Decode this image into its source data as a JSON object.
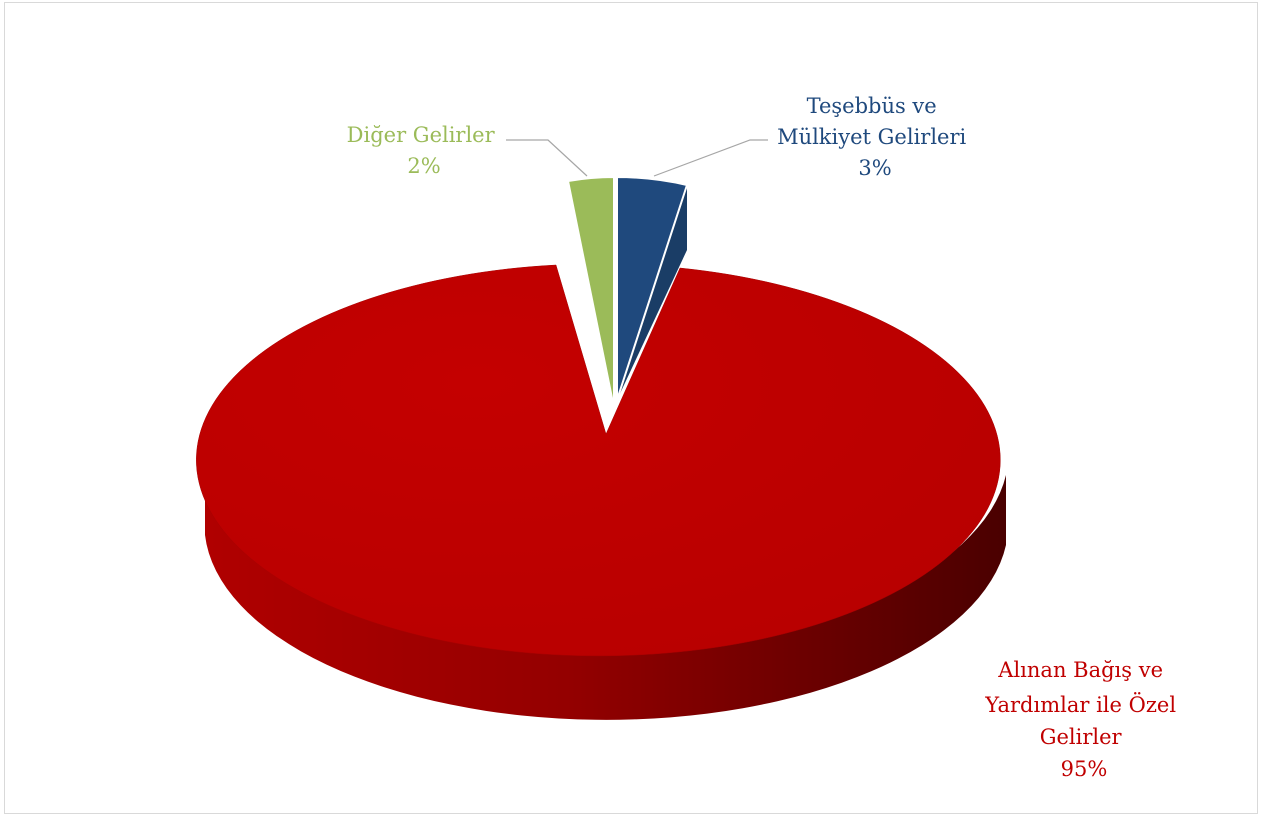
{
  "chart_data": {
    "type": "pie",
    "style": "3d-exploded",
    "slices": [
      {
        "label": "Alınan Bağış ve Yardımlar ile Özel Gelirler",
        "label_lines": [
          "Alınan Bağış ve",
          "Yardımlar ile Özel",
          "Gelirler",
          "95%"
        ],
        "value": 95,
        "color": "#c00000"
      },
      {
        "label": "Diğer Gelirler",
        "label_lines": [
          "Diğer Gelirler",
          "2%"
        ],
        "value": 2,
        "color": "#9bbb59"
      },
      {
        "label": "Teşebbüs ve Mülkiyet Gelirleri",
        "label_lines": [
          "Teşebbüs ve",
          "Mülkiyet Gelirleri",
          "3%"
        ],
        "value": 3,
        "color": "#1f497d"
      }
    ]
  }
}
